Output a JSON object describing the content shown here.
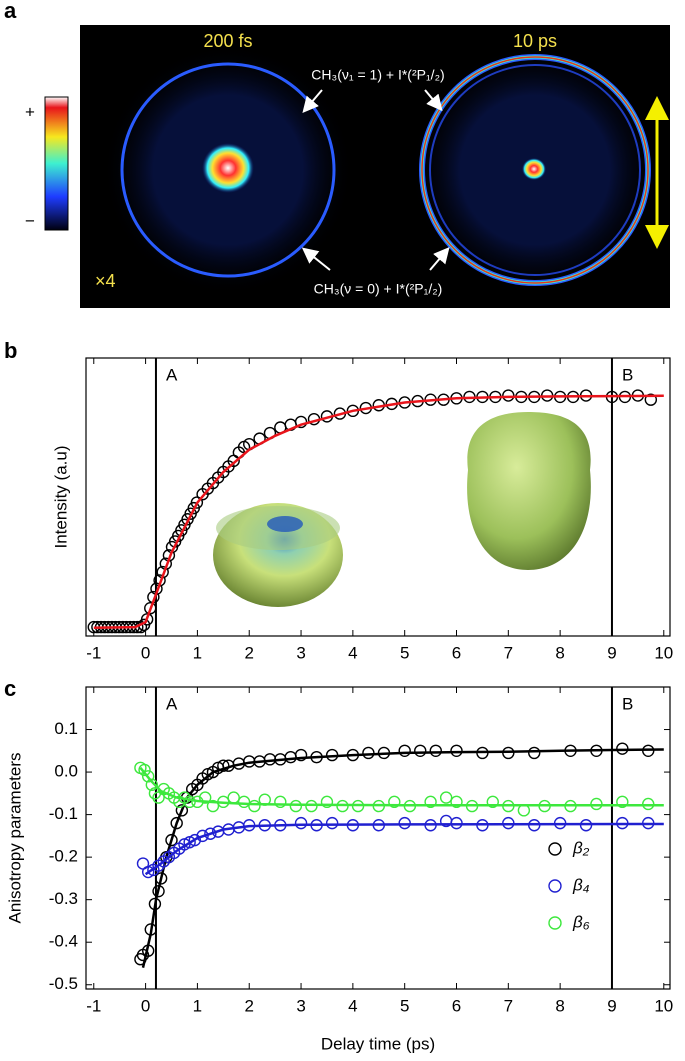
{
  "panel_labels": [
    "a",
    "b",
    "c"
  ],
  "images": {
    "colorbar_plus": "+",
    "colorbar_minus": "−",
    "left_time": "200 fs",
    "right_time": "10 ps",
    "scale_note": "×4",
    "label_top": "CH₃(ν₁ = 1) + I*(²P₁/₂)",
    "label_bottom": "CH₃(ν = 0) + I*(²P₁/₂)"
  },
  "chart_data": [
    {
      "type": "scatter",
      "ylabel": "Intensity (a.u)",
      "xlim": [
        -1.15,
        10.12
      ],
      "ylim": [
        0,
        1
      ],
      "xticks": [
        -1,
        0,
        1,
        2,
        3,
        4,
        5,
        6,
        7,
        8,
        9,
        10
      ],
      "annotations": [
        {
          "label": "A",
          "x": 0.2
        },
        {
          "label": "B",
          "x": 9
        }
      ],
      "series": [
        {
          "color": "#000000",
          "x": [
            -1.0,
            -0.93,
            -0.86,
            -0.79,
            -0.72,
            -0.65,
            -0.58,
            -0.51,
            -0.44,
            -0.37,
            -0.3,
            -0.23,
            -0.16,
            -0.09,
            -0.03,
            0.03,
            0.09,
            0.15,
            0.21,
            0.27,
            0.33,
            0.39,
            0.45,
            0.51,
            0.57,
            0.63,
            0.69,
            0.75,
            0.81,
            0.87,
            0.93,
            0.99,
            1.1,
            1.2,
            1.3,
            1.4,
            1.5,
            1.6,
            1.7,
            1.8,
            1.9,
            2.0,
            2.2,
            2.4,
            2.6,
            2.8,
            3.0,
            3.25,
            3.5,
            3.75,
            4.0,
            4.25,
            4.5,
            4.75,
            5.0,
            5.25,
            5.5,
            5.75,
            6.0,
            6.25,
            6.5,
            6.75,
            7.0,
            7.25,
            7.5,
            7.75,
            8.0,
            8.25,
            8.5,
            9.0,
            9.25,
            9.5,
            9.75
          ],
          "values": [
            0.032,
            0.032,
            0.032,
            0.032,
            0.032,
            0.032,
            0.032,
            0.032,
            0.032,
            0.032,
            0.032,
            0.032,
            0.032,
            0.032,
            0.04,
            0.06,
            0.1,
            0.14,
            0.17,
            0.2,
            0.23,
            0.26,
            0.29,
            0.32,
            0.34,
            0.36,
            0.38,
            0.4,
            0.42,
            0.44,
            0.46,
            0.48,
            0.51,
            0.53,
            0.55,
            0.57,
            0.59,
            0.61,
            0.63,
            0.66,
            0.68,
            0.69,
            0.71,
            0.73,
            0.75,
            0.76,
            0.77,
            0.78,
            0.79,
            0.8,
            0.81,
            0.82,
            0.83,
            0.835,
            0.84,
            0.845,
            0.85,
            0.85,
            0.855,
            0.86,
            0.86,
            0.86,
            0.865,
            0.86,
            0.86,
            0.865,
            0.86,
            0.86,
            0.865,
            0.86,
            0.86,
            0.865,
            0.85
          ],
          "fit": {
            "color": "#e8141b",
            "x": [
              -1,
              -0.2,
              0,
              0.2,
              0.5,
              1,
              1.5,
              2,
              2.5,
              3,
              4,
              5,
              6,
              7,
              8,
              9,
              10
            ],
            "values": [
              0.03,
              0.032,
              0.05,
              0.15,
              0.3,
              0.48,
              0.59,
              0.67,
              0.72,
              0.76,
              0.81,
              0.84,
              0.855,
              0.86,
              0.862,
              0.863,
              0.864
            ]
          }
        }
      ]
    },
    {
      "type": "scatter",
      "xlabel": "Delay time (ps)",
      "ylabel": "Anisotropy parameters",
      "xlim": [
        -1.15,
        10.12
      ],
      "ylim": [
        -0.51,
        0.2
      ],
      "xticks": [
        -1,
        0,
        1,
        2,
        3,
        4,
        5,
        6,
        7,
        8,
        9,
        10
      ],
      "yticks": [
        -0.5,
        -0.4,
        -0.3,
        -0.2,
        -0.1,
        {
          "value": 0,
          "label": "0.0"
        },
        0.1
      ],
      "legend": "lower right",
      "annotations": [
        {
          "label": "A",
          "x": 0.2
        },
        {
          "label": "B",
          "x": 9
        }
      ],
      "series": [
        {
          "name": "β₂",
          "color": "#000000",
          "x": [
            -0.1,
            -0.05,
            0.05,
            0.1,
            0.18,
            0.25,
            0.3,
            0.4,
            0.5,
            0.6,
            0.7,
            0.8,
            0.9,
            1.0,
            1.1,
            1.2,
            1.3,
            1.4,
            1.5,
            1.6,
            1.8,
            2.0,
            2.2,
            2.4,
            2.6,
            2.8,
            3.0,
            3.3,
            3.6,
            4.0,
            4.3,
            4.6,
            5.0,
            5.3,
            5.6,
            6.0,
            6.5,
            7.0,
            7.5,
            8.2,
            8.7,
            9.2,
            9.7
          ],
          "values": [
            -0.44,
            -0.43,
            -0.42,
            -0.37,
            -0.31,
            -0.28,
            -0.25,
            -0.2,
            -0.16,
            -0.12,
            -0.09,
            -0.06,
            -0.04,
            -0.03,
            -0.015,
            -0.005,
            0.0,
            0.01,
            0.015,
            0.015,
            0.02,
            0.025,
            0.025,
            0.03,
            0.03,
            0.035,
            0.04,
            0.035,
            0.04,
            0.04,
            0.045,
            0.045,
            0.05,
            0.05,
            0.05,
            0.05,
            0.045,
            0.045,
            0.045,
            0.05,
            0.05,
            0.055,
            0.05
          ],
          "fit": {
            "color": "#000000",
            "x": [
              -0.05,
              0.1,
              0.2,
              0.4,
              0.6,
              0.8,
              1.0,
              1.3,
              1.7,
              2.0,
              3,
              4,
              5,
              6,
              7,
              8,
              9,
              10
            ],
            "values": [
              -0.46,
              -0.38,
              -0.3,
              -0.2,
              -0.12,
              -0.06,
              -0.03,
              0.0,
              0.015,
              0.022,
              0.033,
              0.04,
              0.045,
              0.047,
              0.048,
              0.05,
              0.052,
              0.053
            ]
          }
        },
        {
          "name": "β₄",
          "color": "#2020d0",
          "x": [
            -0.05,
            0.05,
            0.15,
            0.25,
            0.35,
            0.45,
            0.55,
            0.65,
            0.75,
            0.85,
            0.95,
            1.1,
            1.25,
            1.4,
            1.6,
            1.8,
            2.0,
            2.3,
            2.6,
            3.0,
            3.3,
            3.6,
            4.0,
            4.5,
            5.0,
            5.5,
            5.8,
            6.0,
            6.5,
            7.0,
            7.5,
            8.0,
            8.5,
            9.2,
            9.7
          ],
          "values": [
            -0.215,
            -0.235,
            -0.23,
            -0.22,
            -0.21,
            -0.2,
            -0.19,
            -0.18,
            -0.17,
            -0.165,
            -0.16,
            -0.15,
            -0.145,
            -0.14,
            -0.135,
            -0.13,
            -0.125,
            -0.125,
            -0.125,
            -0.12,
            -0.125,
            -0.12,
            -0.125,
            -0.125,
            -0.12,
            -0.125,
            -0.115,
            -0.12,
            -0.125,
            -0.12,
            -0.125,
            -0.12,
            -0.125,
            -0.12,
            -0.12
          ],
          "fit": {
            "color": "#2020d0",
            "x": [
              0,
              0.3,
              0.6,
              1,
              1.5,
              2,
              3,
              5,
              10
            ],
            "values": [
              -0.24,
              -0.215,
              -0.185,
              -0.155,
              -0.135,
              -0.127,
              -0.124,
              -0.123,
              -0.122
            ]
          }
        },
        {
          "name": "β₆",
          "color": "#3de83d",
          "x": [
            -0.1,
            -0.02,
            0.05,
            0.12,
            0.18,
            0.25,
            0.35,
            0.45,
            0.55,
            0.65,
            0.75,
            0.85,
            1.0,
            1.15,
            1.3,
            1.5,
            1.7,
            1.9,
            2.1,
            2.3,
            2.6,
            2.9,
            3.2,
            3.5,
            3.8,
            4.1,
            4.5,
            4.8,
            5.1,
            5.5,
            5.8,
            6.0,
            6.3,
            6.7,
            7.0,
            7.3,
            7.7,
            8.2,
            8.7,
            9.2,
            9.7
          ],
          "values": [
            0.01,
            0.005,
            -0.01,
            -0.03,
            -0.05,
            -0.06,
            -0.04,
            -0.05,
            -0.06,
            -0.07,
            -0.06,
            -0.07,
            -0.07,
            -0.06,
            -0.08,
            -0.07,
            -0.06,
            -0.07,
            -0.08,
            -0.065,
            -0.07,
            -0.08,
            -0.08,
            -0.07,
            -0.08,
            -0.08,
            -0.08,
            -0.07,
            -0.08,
            -0.07,
            -0.06,
            -0.07,
            -0.08,
            -0.07,
            -0.08,
            -0.09,
            -0.08,
            -0.08,
            -0.075,
            -0.07,
            -0.075
          ],
          "fit": {
            "color": "#3de83d",
            "x": [
              -0.1,
              0.1,
              0.3,
              0.6,
              1,
              1.5,
              2,
              3,
              5,
              10
            ],
            "values": [
              0.01,
              -0.02,
              -0.045,
              -0.06,
              -0.068,
              -0.072,
              -0.075,
              -0.077,
              -0.078,
              -0.078
            ]
          }
        }
      ]
    }
  ]
}
